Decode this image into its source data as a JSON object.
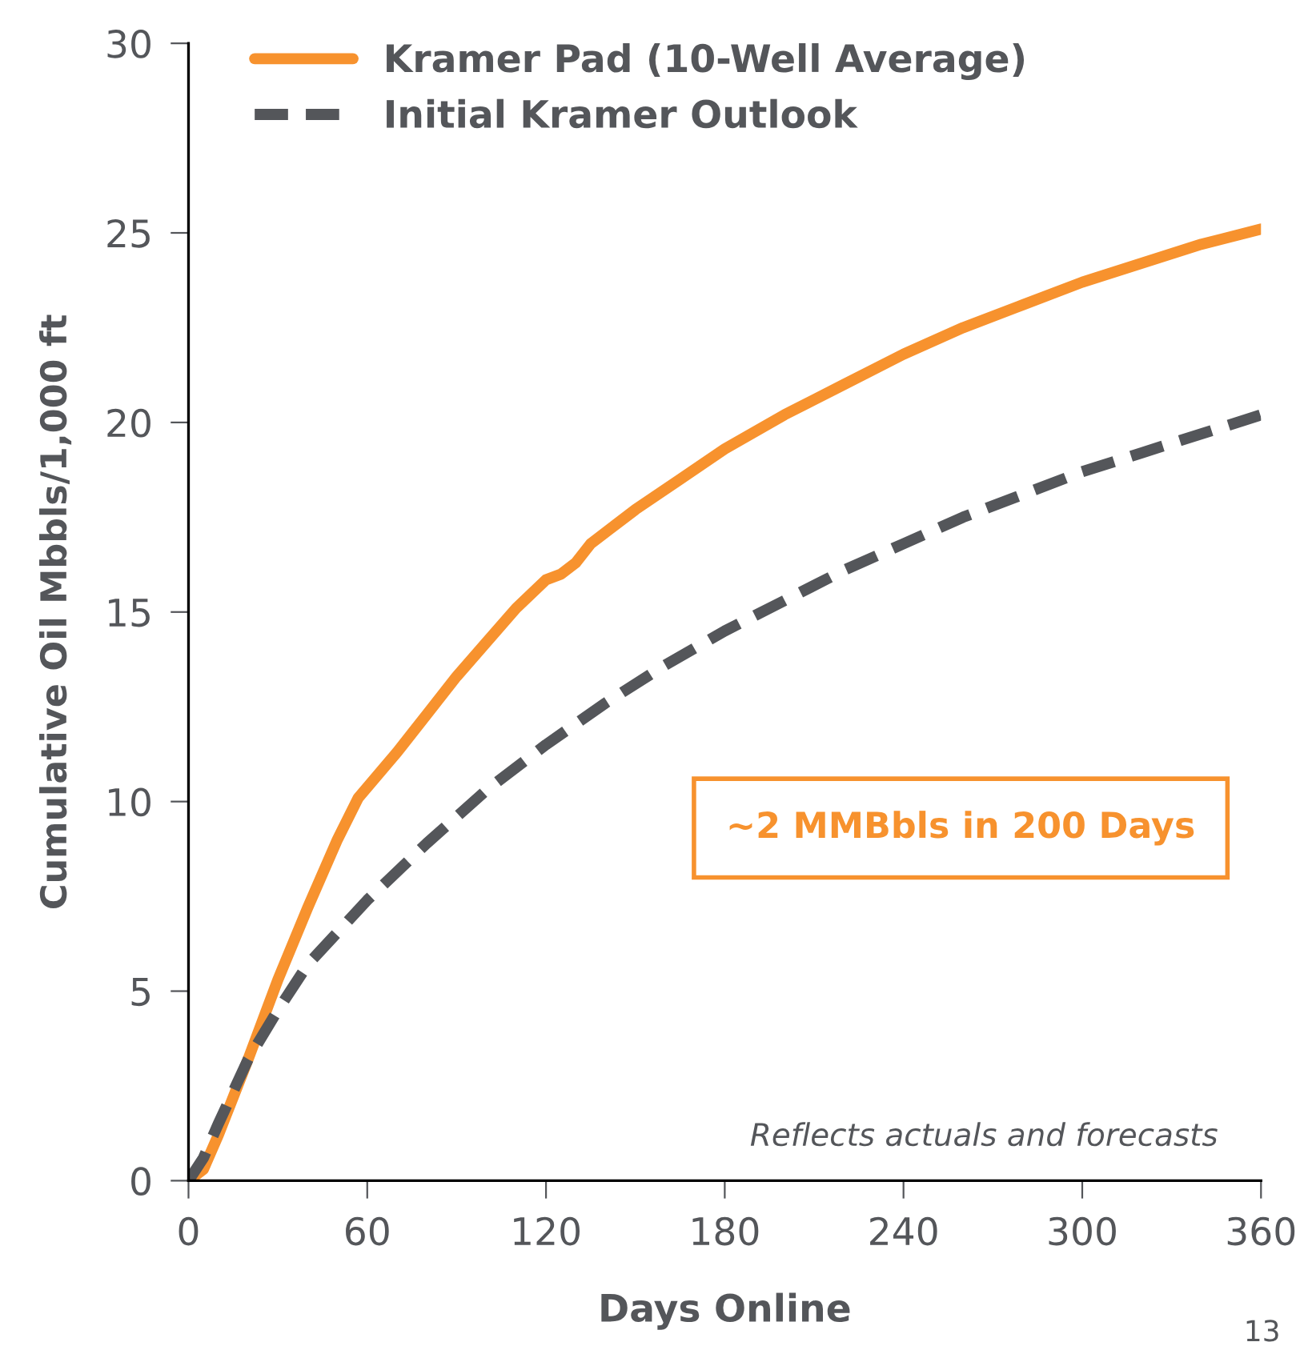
{
  "chart_data": {
    "type": "line",
    "xlabel": "Days Online",
    "ylabel": "Cumulative Oil Mbbls/1,000 ft",
    "series": [
      {
        "name": "Kramer Pad (10-Well Average)",
        "color": "#f7922e",
        "line_style": "solid",
        "x": [
          0,
          5,
          10,
          20,
          30,
          40,
          50,
          57,
          70,
          80,
          90,
          100,
          110,
          120,
          125,
          130,
          135,
          150,
          165,
          180,
          200,
          220,
          240,
          260,
          280,
          300,
          320,
          340,
          360
        ],
        "values": [
          0,
          0.3,
          1.2,
          3.2,
          5.3,
          7.2,
          9.0,
          10.1,
          11.3,
          12.3,
          13.3,
          14.2,
          15.1,
          15.85,
          16.0,
          16.3,
          16.8,
          17.7,
          18.5,
          19.3,
          20.2,
          21.0,
          21.8,
          22.5,
          23.1,
          23.7,
          24.2,
          24.7,
          25.1
        ]
      },
      {
        "name": "Initial Kramer Outlook",
        "color": "#54565a",
        "line_style": "dashed",
        "x": [
          0,
          5,
          10,
          20,
          30,
          40,
          60,
          80,
          100,
          120,
          140,
          160,
          180,
          200,
          220,
          240,
          260,
          280,
          300,
          320,
          340,
          360
        ],
        "values": [
          0,
          0.6,
          1.5,
          3.2,
          4.5,
          5.7,
          7.4,
          8.9,
          10.3,
          11.5,
          12.6,
          13.6,
          14.5,
          15.3,
          16.1,
          16.8,
          17.5,
          18.1,
          18.7,
          19.2,
          19.7,
          20.2
        ]
      }
    ],
    "xlim": [
      0,
      360
    ],
    "xticks": [
      0,
      60,
      120,
      180,
      240,
      300,
      360
    ],
    "ylim": [
      0,
      30
    ],
    "yticks": [
      0,
      5,
      10,
      15,
      20,
      25,
      30
    ],
    "grid": false,
    "legend": "top left",
    "annotations": [
      "~2 MMBbls in 200 Days",
      "Reflects actuals and forecasts",
      "13"
    ]
  }
}
